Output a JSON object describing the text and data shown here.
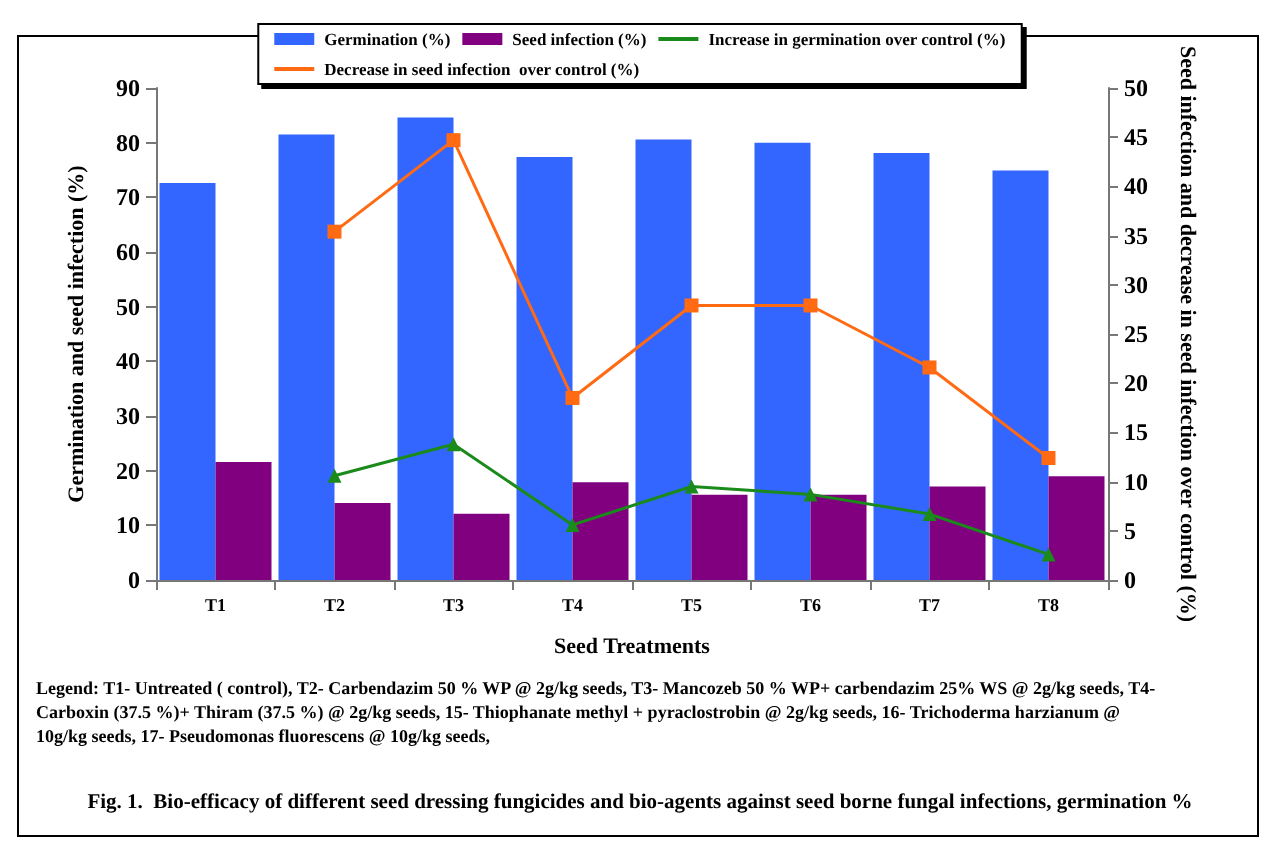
{
  "chart_data": {
    "type": "bar",
    "title": "Fig. 1.  Bio-efficacy of different seed dressing fungicides and bio-agents against seed borne fungal infections, germination %",
    "xlabel": "Seed Treatments",
    "ylabel": "Germination and seed infection (%)",
    "y2label": "Seed infection and decrease in seed infection over control (%)",
    "categories": [
      "T1",
      "T2",
      "T3",
      "T4",
      "T5",
      "T6",
      "T7",
      "T8"
    ],
    "series": [
      {
        "name": "Germination (%)",
        "color": "#3366ff",
        "values": [
          72.6,
          81.5,
          84.6,
          77.4,
          80.6,
          80.0,
          78.1,
          74.9
        ]
      },
      {
        "name": "Seed infection (%)",
        "color": "#800080",
        "values": [
          21.6,
          14.1,
          12.1,
          17.9,
          15.6,
          15.6,
          17.1,
          19.0
        ]
      },
      {
        "name": "Increase in germination over control (%)",
        "type": "line",
        "axis": "y2",
        "marker": "triangle",
        "color": "#1a8a1a",
        "values": [
          null,
          10.6,
          13.8,
          5.6,
          9.5,
          8.7,
          6.7,
          2.6
        ]
      },
      {
        "name": "Decrease in seed infection  over control (%)",
        "type": "line",
        "axis": "y2",
        "marker": "square",
        "color": "#ff6a13",
        "values": [
          null,
          35.4,
          44.7,
          18.5,
          27.9,
          27.9,
          21.6,
          12.4
        ]
      }
    ],
    "ylim": [
      0,
      90
    ],
    "yticks": [
      0,
      10,
      20,
      30,
      40,
      50,
      60,
      70,
      80,
      90
    ],
    "y2lim": [
      0,
      50
    ],
    "y2ticks": [
      0,
      5,
      10,
      15,
      20,
      25,
      30,
      35,
      40,
      45,
      50
    ],
    "legend": "top",
    "grid": false,
    "annotations": [
      "Legend: T1- Untreated ( control), T2- Carbendazim 50 % WP @ 2g/kg seeds, T3- Mancozeb 50 % WP+ carbendazim 25% WS @ 2g/kg seeds, T4- Carboxin (37.5 %)+ Thiram (37.5 %) @ 2g/kg seeds, 15- Thiophanate methyl + pyraclostrobin @ 2g/kg seeds, 16- Trichoderma harzianum @ 10g/kg seeds, 17- Pseudomonas fluorescens @ 10g/kg seeds,"
    ]
  }
}
